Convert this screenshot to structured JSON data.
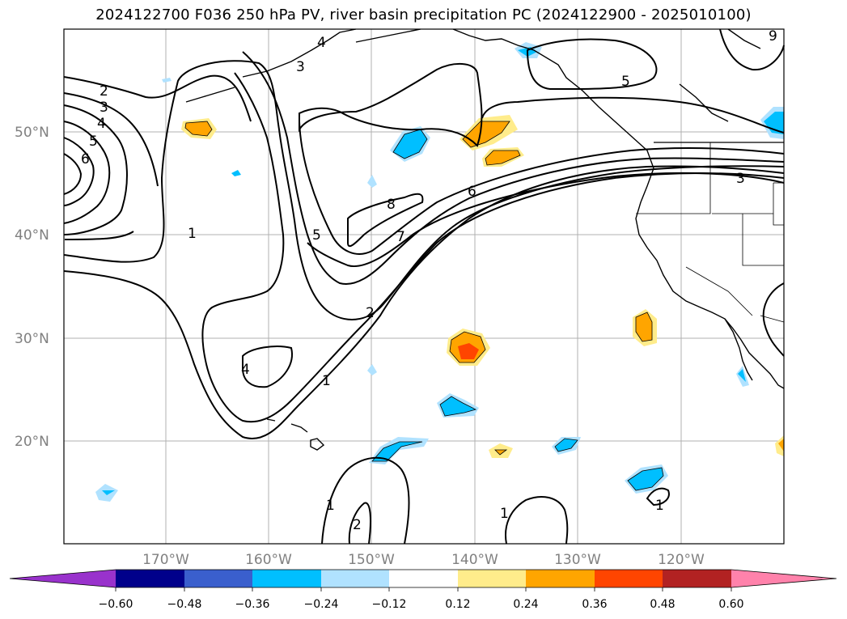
{
  "title": "2024122700 F036 250 hPa PV, river basin precipitation PC (2024122900 - 2025010100)",
  "map": {
    "lat_labels": [
      "50°N",
      "40°N",
      "30°N",
      "20°N"
    ],
    "lon_labels": [
      "170°W",
      "160°W",
      "150°W",
      "140°W",
      "130°W",
      "120°W"
    ],
    "pv_contour_labels": [
      "2",
      "3",
      "4",
      "5",
      "6",
      "4",
      "3",
      "9",
      "5",
      "8",
      "7",
      "6",
      "1",
      "5",
      "2",
      "4",
      "1",
      "3",
      "1",
      "2",
      "1",
      "1"
    ]
  },
  "colorbar": {
    "colors": [
      "#9932cc",
      "#00008b",
      "#3a5fcd",
      "#00bfff",
      "#b0e2ff",
      "#ffffff",
      "#ffec8b",
      "#ffa500",
      "#ff4500",
      "#b22222",
      "#ff82ab"
    ],
    "ticks": [
      "−0.60",
      "−0.48",
      "−0.36",
      "−0.24",
      "−0.12",
      "0.12",
      "0.24",
      "0.36",
      "0.48",
      "0.60"
    ]
  }
}
